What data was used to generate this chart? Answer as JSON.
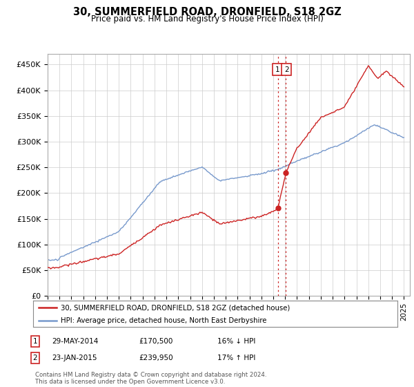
{
  "title": "30, SUMMERFIELD ROAD, DRONFIELD, S18 2GZ",
  "subtitle": "Price paid vs. HM Land Registry's House Price Index (HPI)",
  "ylabel_ticks": [
    "£0",
    "£50K",
    "£100K",
    "£150K",
    "£200K",
    "£250K",
    "£300K",
    "£350K",
    "£400K",
    "£450K"
  ],
  "ytick_values": [
    0,
    50000,
    100000,
    150000,
    200000,
    250000,
    300000,
    350000,
    400000,
    450000
  ],
  "ylim": [
    0,
    470000
  ],
  "xlim_start": 1995.0,
  "xlim_end": 2025.5,
  "hpi_color": "#7799cc",
  "price_color": "#cc2222",
  "vline_color": "#cc2222",
  "annotation1_label": "1",
  "annotation1_date": "29-MAY-2014",
  "annotation1_price": "£170,500",
  "annotation1_hpi": "16% ↓ HPI",
  "annotation2_label": "2",
  "annotation2_date": "23-JAN-2015",
  "annotation2_price": "£239,950",
  "annotation2_hpi": "17% ↑ HPI",
  "legend_line1": "30, SUMMERFIELD ROAD, DRONFIELD, S18 2GZ (detached house)",
  "legend_line2": "HPI: Average price, detached house, North East Derbyshire",
  "footer": "Contains HM Land Registry data © Crown copyright and database right 2024.\nThis data is licensed under the Open Government Licence v3.0.",
  "vline1_x": 2014.38,
  "vline2_x": 2015.06,
  "sale1_price": 170500,
  "sale2_price": 239950,
  "background_color": "#ffffff",
  "grid_color": "#cccccc"
}
